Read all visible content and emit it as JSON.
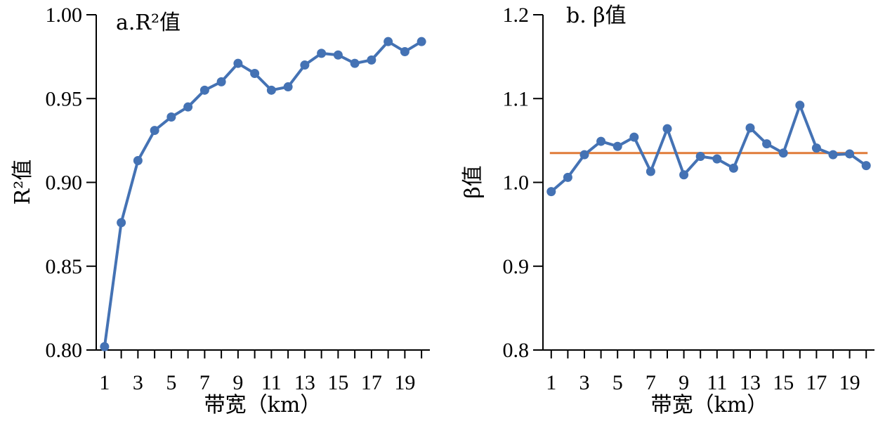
{
  "chart_data": [
    {
      "type": "line",
      "title": "a.R²值",
      "xlabel": "带宽（km）",
      "ylabel": "R²值",
      "x": [
        1,
        2,
        3,
        4,
        5,
        6,
        7,
        8,
        9,
        10,
        11,
        12,
        13,
        14,
        15,
        16,
        17,
        18,
        19,
        20
      ],
      "xticks": [
        "1",
        "3",
        "5",
        "7",
        "9",
        "11",
        "13",
        "15",
        "17",
        "19"
      ],
      "xlim": [
        0.5,
        20.5
      ],
      "ylim": [
        0.8,
        1.0
      ],
      "yticks": [
        "0.80",
        "0.85",
        "0.90",
        "0.95",
        "1.00"
      ],
      "series": [
        {
          "color": "#4472b4",
          "values": [
            0.802,
            0.876,
            0.913,
            0.931,
            0.939,
            0.945,
            0.955,
            0.96,
            0.971,
            0.965,
            0.955,
            0.957,
            0.97,
            0.977,
            0.976,
            0.971,
            0.973,
            0.984,
            0.978,
            0.984
          ]
        }
      ],
      "grid": false
    },
    {
      "type": "line",
      "title": "b. β值",
      "xlabel": "带宽（km）",
      "ylabel": "β值",
      "x": [
        1,
        2,
        3,
        4,
        5,
        6,
        7,
        8,
        9,
        10,
        11,
        12,
        13,
        14,
        15,
        16,
        17,
        18,
        19,
        20
      ],
      "xticks": [
        "1",
        "3",
        "5",
        "7",
        "9",
        "11",
        "13",
        "15",
        "17",
        "19"
      ],
      "xlim": [
        0.5,
        20.5
      ],
      "ylim": [
        0.8,
        1.2
      ],
      "yticks": [
        "0.8",
        "0.9",
        "1.0",
        "1.1",
        "1.2"
      ],
      "series": [
        {
          "color": "#4472b4",
          "values": [
            0.989,
            1.006,
            1.033,
            1.049,
            1.043,
            1.054,
            1.013,
            1.064,
            1.009,
            1.031,
            1.028,
            1.017,
            1.065,
            1.046,
            1.035,
            1.092,
            1.041,
            1.033,
            1.034,
            1.02
          ]
        }
      ],
      "reference_line": {
        "y": 1.035,
        "color": "#e07b39"
      },
      "grid": false
    }
  ]
}
